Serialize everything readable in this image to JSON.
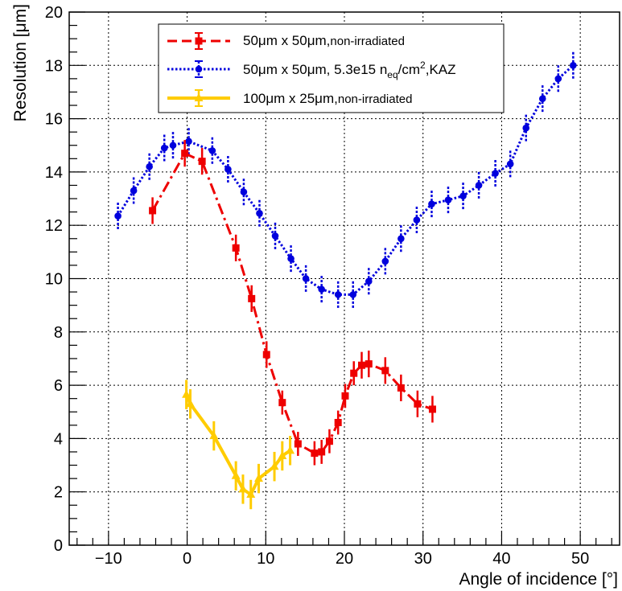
{
  "chart_data": {
    "type": "scatter",
    "xlabel": "Angle of incidence [°]",
    "ylabel": "Resolution [μm]",
    "xlim": [
      -15,
      55
    ],
    "ylim": [
      0,
      20
    ],
    "x_ticks": [
      -10,
      0,
      10,
      20,
      30,
      40,
      50
    ],
    "y_ticks": [
      0,
      2,
      4,
      6,
      8,
      10,
      12,
      14,
      16,
      18,
      20
    ],
    "grid": true,
    "legend_position": "top-center",
    "series": [
      {
        "name": "50μm x 50μm,non-irradiated",
        "legend_main": "50μm x 50μm,",
        "legend_sub": "non-irradiated",
        "color": "#ee0000",
        "line_style": "dashdot",
        "marker": "square",
        "x": [
          -4.4,
          -0.3,
          1.9,
          6.2,
          8.2,
          10.1,
          12.1,
          14.1,
          16.2,
          17.1,
          18.1,
          19.2,
          20.1,
          21.2,
          22.2,
          23.1,
          25.2,
          27.2,
          29.3,
          31.2
        ],
        "y": [
          12.55,
          14.7,
          14.4,
          11.15,
          9.25,
          7.15,
          5.35,
          3.8,
          3.45,
          3.5,
          3.9,
          4.6,
          5.6,
          6.45,
          6.75,
          6.8,
          6.55,
          5.9,
          5.3,
          5.1
        ],
        "err": [
          0.5,
          0.5,
          0.5,
          0.5,
          0.5,
          0.5,
          0.45,
          0.45,
          0.45,
          0.45,
          0.45,
          0.45,
          0.45,
          0.45,
          0.5,
          0.5,
          0.5,
          0.5,
          0.5,
          0.5
        ]
      },
      {
        "name": "50μm x 50μm, 5.3e15 n_eq/cm^2,KAZ",
        "legend_main": "50μm x 50μm, 5.3e15 n",
        "legend_sub1": "eq",
        "legend_main2": "/cm",
        "legend_sup": "2",
        "legend_main3": ",KAZ",
        "color": "#0000dd",
        "line_style": "dotted",
        "marker": "circle",
        "x": [
          -8.8,
          -6.8,
          -4.8,
          -2.9,
          -1.8,
          0.2,
          3.2,
          5.2,
          7.2,
          9.2,
          11.2,
          13.2,
          15.1,
          17.1,
          19.2,
          21.1,
          23.1,
          25.2,
          27.2,
          29.2,
          31.1,
          33.2,
          35.1,
          37.1,
          39.2,
          41.1,
          43.1,
          45.2,
          47.2,
          49.1
        ],
        "y": [
          12.35,
          13.3,
          14.2,
          14.9,
          15.0,
          15.15,
          14.8,
          14.1,
          13.25,
          12.45,
          11.6,
          10.75,
          10.0,
          9.6,
          9.4,
          9.4,
          9.9,
          10.65,
          11.5,
          12.2,
          12.8,
          12.95,
          13.1,
          13.5,
          13.95,
          14.3,
          15.65,
          16.75,
          17.5,
          18.0
        ],
        "err": [
          0.5,
          0.5,
          0.5,
          0.5,
          0.5,
          0.5,
          0.5,
          0.5,
          0.5,
          0.5,
          0.5,
          0.5,
          0.5,
          0.5,
          0.5,
          0.5,
          0.5,
          0.5,
          0.5,
          0.5,
          0.5,
          0.5,
          0.5,
          0.5,
          0.5,
          0.5,
          0.5,
          0.5,
          0.5,
          0.5
        ]
      },
      {
        "name": "100μm x 25μm,non-irradiated",
        "legend_main": "100μm x 25μm,",
        "legend_sub": "non-irradiated",
        "color": "#ffcc00",
        "line_style": "solid",
        "marker": "triangle",
        "x": [
          -0.1,
          0.4,
          3.4,
          6.2,
          7.1,
          8.1,
          9.1,
          11.1,
          12.1,
          13.1
        ],
        "y": [
          5.65,
          5.3,
          4.1,
          2.6,
          2.1,
          1.9,
          2.5,
          2.95,
          3.35,
          3.55
        ],
        "err": [
          0.55,
          0.55,
          0.55,
          0.55,
          0.55,
          0.55,
          0.55,
          0.55,
          0.55,
          0.55
        ]
      }
    ]
  }
}
